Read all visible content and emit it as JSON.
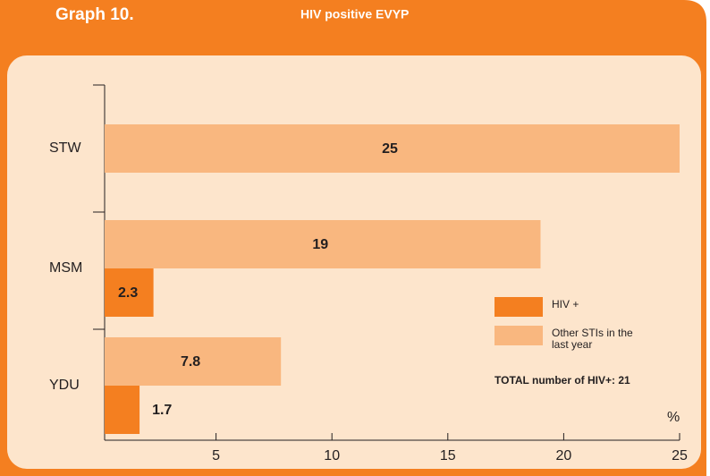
{
  "chart_data": {
    "type": "bar",
    "orientation": "horizontal",
    "title": "Graph 10.",
    "subtitle": "HIV positive EVYP",
    "categories": [
      "STW",
      "MSM",
      "YDU"
    ],
    "series": [
      {
        "name": "Other STIs in the last year",
        "color": "#f9b77f",
        "values": [
          25,
          19,
          7.8
        ]
      },
      {
        "name": "HIV +",
        "color": "#f47f20",
        "values": [
          null,
          2.3,
          1.7
        ]
      }
    ],
    "xlim": [
      0,
      25
    ],
    "xticks": [
      5,
      10,
      15,
      20,
      25
    ],
    "x_label": "%",
    "annotation": "TOTAL number of HIV+: 21"
  }
}
